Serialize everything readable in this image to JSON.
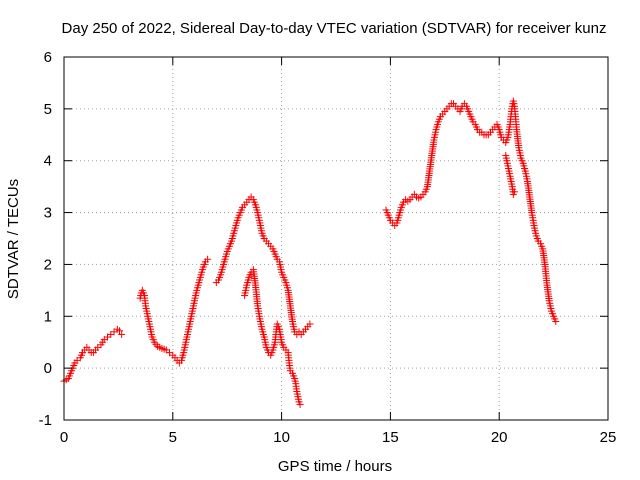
{
  "chart_data": {
    "type": "scatter",
    "title": "Day 250 of 2022, Sidereal Day-to-day VTEC variation (SDTVAR) for receiver kunz",
    "xlabel": "GPS time / hours",
    "ylabel": "SDTVAR / TECUs",
    "xlim": [
      0,
      25
    ],
    "ylim": [
      -1,
      6
    ],
    "x_ticks": [
      "0",
      "5",
      "10",
      "15",
      "20",
      "25"
    ],
    "y_ticks": [
      "-1",
      "0",
      "1",
      "2",
      "3",
      "4",
      "5",
      "6"
    ],
    "grid": true,
    "marker": "+",
    "color": "#ff0000",
    "series": [
      {
        "segments": [
          [
            [
              0.0,
              -0.25
            ],
            [
              0.2,
              -0.2
            ],
            [
              0.35,
              -0.05
            ],
            [
              0.5,
              0.1
            ],
            [
              0.6,
              0.15
            ],
            [
              0.75,
              0.2
            ],
            [
              0.85,
              0.3
            ],
            [
              0.95,
              0.35
            ],
            [
              1.05,
              0.4
            ],
            [
              1.15,
              0.35
            ],
            [
              1.25,
              0.3
            ],
            [
              1.35,
              0.3
            ],
            [
              1.45,
              0.35
            ],
            [
              1.55,
              0.4
            ],
            [
              1.7,
              0.45
            ],
            [
              1.85,
              0.55
            ],
            [
              2.0,
              0.6
            ],
            [
              2.15,
              0.65
            ],
            [
              2.3,
              0.7
            ],
            [
              2.45,
              0.75
            ],
            [
              2.55,
              0.72
            ],
            [
              2.65,
              0.65
            ]
          ],
          [
            [
              3.5,
              1.35
            ],
            [
              3.55,
              1.45
            ],
            [
              3.6,
              1.5
            ],
            [
              3.7,
              1.4
            ],
            [
              3.75,
              1.2
            ],
            [
              3.85,
              1.0
            ],
            [
              3.95,
              0.8
            ],
            [
              4.05,
              0.6
            ],
            [
              4.15,
              0.5
            ],
            [
              4.3,
              0.42
            ],
            [
              4.5,
              0.38
            ],
            [
              4.7,
              0.35
            ],
            [
              4.85,
              0.3
            ],
            [
              5.0,
              0.25
            ],
            [
              5.1,
              0.2
            ],
            [
              5.2,
              0.15
            ],
            [
              5.3,
              0.1
            ],
            [
              5.4,
              0.15
            ],
            [
              5.5,
              0.3
            ],
            [
              5.6,
              0.5
            ],
            [
              5.7,
              0.7
            ],
            [
              5.8,
              0.9
            ],
            [
              5.9,
              1.1
            ],
            [
              6.0,
              1.3
            ],
            [
              6.1,
              1.5
            ],
            [
              6.2,
              1.65
            ],
            [
              6.3,
              1.8
            ],
            [
              6.4,
              1.95
            ],
            [
              6.5,
              2.05
            ],
            [
              6.6,
              2.1
            ]
          ],
          [
            [
              7.0,
              1.65
            ],
            [
              7.1,
              1.7
            ],
            [
              7.2,
              1.8
            ],
            [
              7.3,
              1.95
            ],
            [
              7.4,
              2.1
            ],
            [
              7.5,
              2.25
            ],
            [
              7.6,
              2.35
            ],
            [
              7.7,
              2.45
            ],
            [
              7.8,
              2.6
            ],
            [
              7.9,
              2.75
            ],
            [
              8.0,
              2.9
            ],
            [
              8.1,
              3.0
            ],
            [
              8.2,
              3.1
            ],
            [
              8.3,
              3.15
            ],
            [
              8.4,
              3.2
            ],
            [
              8.5,
              3.25
            ],
            [
              8.6,
              3.3
            ],
            [
              8.7,
              3.25
            ],
            [
              8.8,
              3.15
            ],
            [
              8.9,
              3.0
            ],
            [
              9.0,
              2.8
            ],
            [
              9.1,
              2.6
            ],
            [
              9.2,
              2.5
            ],
            [
              9.3,
              2.45
            ],
            [
              9.4,
              2.4
            ],
            [
              9.5,
              2.35
            ],
            [
              9.6,
              2.3
            ],
            [
              9.7,
              2.2
            ],
            [
              9.8,
              2.1
            ],
            [
              9.9,
              2.05
            ],
            [
              10.0,
              1.85
            ],
            [
              10.1,
              1.75
            ],
            [
              10.2,
              1.65
            ],
            [
              10.3,
              1.5
            ],
            [
              10.4,
              1.2
            ],
            [
              10.5,
              0.9
            ],
            [
              10.6,
              0.7
            ],
            [
              10.7,
              0.65
            ],
            [
              10.8,
              0.7
            ],
            [
              10.9,
              0.65
            ],
            [
              11.0,
              0.7
            ],
            [
              11.1,
              0.75
            ],
            [
              11.2,
              0.8
            ],
            [
              11.3,
              0.85
            ]
          ],
          [
            [
              8.3,
              1.4
            ],
            [
              8.4,
              1.6
            ],
            [
              8.5,
              1.75
            ],
            [
              8.6,
              1.85
            ],
            [
              8.7,
              1.9
            ],
            [
              8.8,
              1.6
            ],
            [
              8.9,
              1.2
            ],
            [
              9.0,
              0.95
            ],
            [
              9.1,
              0.75
            ],
            [
              9.2,
              0.6
            ],
            [
              9.3,
              0.4
            ],
            [
              9.4,
              0.3
            ],
            [
              9.5,
              0.25
            ],
            [
              9.6,
              0.35
            ],
            [
              9.7,
              0.5
            ],
            [
              9.75,
              0.7
            ],
            [
              9.8,
              0.85
            ],
            [
              9.9,
              0.75
            ],
            [
              10.0,
              0.5
            ],
            [
              10.1,
              0.4
            ],
            [
              10.2,
              0.35
            ],
            [
              10.3,
              0.3
            ],
            [
              10.35,
              0.1
            ],
            [
              10.4,
              -0.05
            ],
            [
              10.5,
              -0.1
            ],
            [
              10.6,
              -0.2
            ],
            [
              10.65,
              -0.3
            ],
            [
              10.7,
              -0.45
            ],
            [
              10.75,
              -0.55
            ],
            [
              10.8,
              -0.65
            ],
            [
              10.85,
              -0.7
            ]
          ],
          [
            [
              14.8,
              3.05
            ],
            [
              14.9,
              2.95
            ],
            [
              15.0,
              2.85
            ],
            [
              15.1,
              2.8
            ],
            [
              15.2,
              2.75
            ],
            [
              15.3,
              2.8
            ],
            [
              15.4,
              2.95
            ],
            [
              15.5,
              3.1
            ],
            [
              15.6,
              3.2
            ],
            [
              15.7,
              3.25
            ],
            [
              15.8,
              3.22
            ],
            [
              15.9,
              3.25
            ],
            [
              16.0,
              3.3
            ],
            [
              16.1,
              3.35
            ],
            [
              16.2,
              3.3
            ],
            [
              16.3,
              3.28
            ],
            [
              16.4,
              3.3
            ],
            [
              16.5,
              3.35
            ],
            [
              16.6,
              3.4
            ],
            [
              16.7,
              3.5
            ],
            [
              16.8,
              3.8
            ],
            [
              16.9,
              4.1
            ],
            [
              17.0,
              4.4
            ],
            [
              17.1,
              4.6
            ],
            [
              17.2,
              4.75
            ],
            [
              17.3,
              4.85
            ],
            [
              17.4,
              4.9
            ],
            [
              17.5,
              4.95
            ],
            [
              17.6,
              5.0
            ],
            [
              17.7,
              5.05
            ],
            [
              17.8,
              5.1
            ],
            [
              17.9,
              5.1
            ],
            [
              18.0,
              5.05
            ],
            [
              18.1,
              5.0
            ],
            [
              18.2,
              4.95
            ],
            [
              18.3,
              5.05
            ],
            [
              18.4,
              5.1
            ],
            [
              18.5,
              5.05
            ],
            [
              18.6,
              4.95
            ],
            [
              18.7,
              4.85
            ],
            [
              18.8,
              4.75
            ],
            [
              18.9,
              4.7
            ],
            [
              19.0,
              4.6
            ],
            [
              19.1,
              4.55
            ],
            [
              19.2,
              4.55
            ],
            [
              19.3,
              4.5
            ],
            [
              19.4,
              4.5
            ],
            [
              19.5,
              4.5
            ],
            [
              19.6,
              4.55
            ],
            [
              19.7,
              4.6
            ],
            [
              19.8,
              4.65
            ],
            [
              19.9,
              4.7
            ],
            [
              20.0,
              4.6
            ],
            [
              20.1,
              4.45
            ],
            [
              20.2,
              4.4
            ],
            [
              20.3,
              4.35
            ],
            [
              20.4,
              4.45
            ],
            [
              20.5,
              4.7
            ],
            [
              20.55,
              4.9
            ],
            [
              20.6,
              5.05
            ],
            [
              20.65,
              5.15
            ],
            [
              20.7,
              5.05
            ],
            [
              20.75,
              4.85
            ],
            [
              20.8,
              4.6
            ],
            [
              20.9,
              4.25
            ],
            [
              21.0,
              4.05
            ],
            [
              21.1,
              3.95
            ],
            [
              21.2,
              3.8
            ],
            [
              21.3,
              3.6
            ],
            [
              21.4,
              3.3
            ],
            [
              21.5,
              3.0
            ],
            [
              21.6,
              2.75
            ],
            [
              21.7,
              2.55
            ],
            [
              21.8,
              2.45
            ],
            [
              21.9,
              2.4
            ],
            [
              22.0,
              2.3
            ],
            [
              22.1,
              2.0
            ],
            [
              22.2,
              1.6
            ],
            [
              22.3,
              1.3
            ],
            [
              22.4,
              1.1
            ],
            [
              22.5,
              1.0
            ],
            [
              22.55,
              0.95
            ],
            [
              22.6,
              0.9
            ]
          ],
          [
            [
              20.3,
              4.1
            ],
            [
              20.4,
              3.9
            ],
            [
              20.5,
              3.7
            ],
            [
              20.6,
              3.5
            ],
            [
              20.65,
              3.35
            ],
            [
              20.7,
              3.4
            ]
          ]
        ]
      }
    ]
  }
}
